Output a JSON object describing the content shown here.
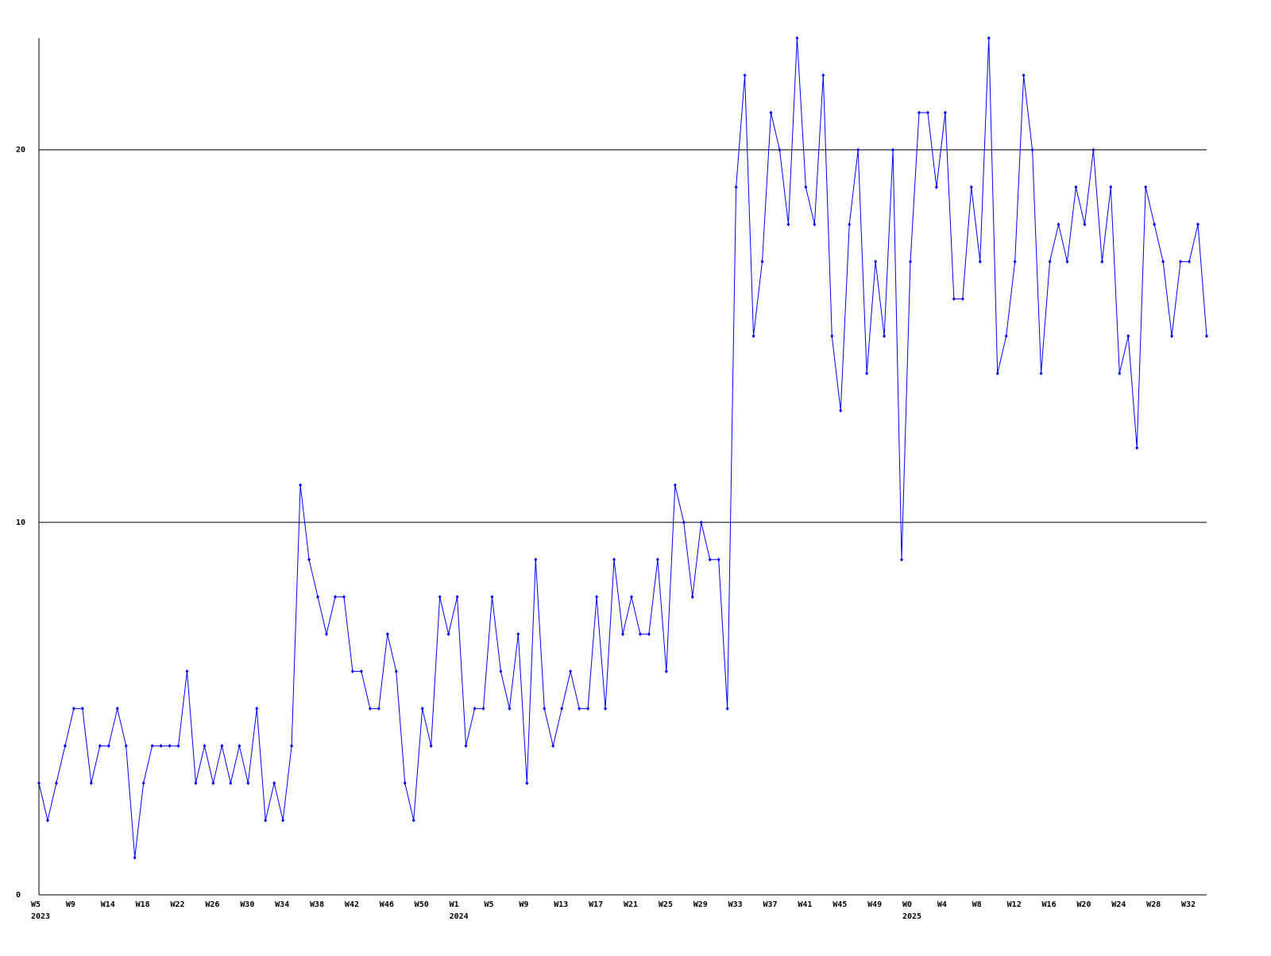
{
  "chart_data": {
    "type": "line",
    "categories": [
      "W5",
      null,
      null,
      null,
      "W9",
      null,
      null,
      null,
      "W14",
      null,
      null,
      null,
      "W18",
      null,
      null,
      null,
      "W22",
      null,
      null,
      null,
      "W26",
      null,
      null,
      null,
      "W30",
      null,
      null,
      null,
      "W34",
      null,
      null,
      null,
      "W38",
      null,
      null,
      null,
      "W42",
      null,
      null,
      null,
      "W46",
      null,
      null,
      null,
      "W50",
      null,
      null,
      null,
      "W1",
      null,
      null,
      null,
      "W5",
      null,
      null,
      null,
      "W9",
      null,
      null,
      null,
      "W13",
      null,
      null,
      null,
      "W17",
      null,
      null,
      null,
      "W21",
      null,
      null,
      null,
      "W25",
      null,
      null,
      null,
      "W29",
      null,
      null,
      null,
      "W33",
      null,
      null,
      null,
      "W37",
      null,
      null,
      null,
      "W41",
      null,
      null,
      null,
      "W45",
      null,
      null,
      null,
      "W49",
      null,
      null,
      null,
      "W0",
      null,
      null,
      null,
      "W4",
      null,
      null,
      null,
      "W8",
      null,
      null,
      null,
      "W12",
      null,
      null,
      null,
      "W16",
      null,
      null,
      null,
      "W20",
      null,
      null,
      null,
      "W24",
      null,
      null,
      null,
      "W28",
      null,
      null,
      null,
      "W32",
      null,
      null
    ],
    "year_labels": [
      {
        "index": 0,
        "label": "2023"
      },
      {
        "index": 48,
        "label": "2024"
      },
      {
        "index": 100,
        "label": "2025"
      }
    ],
    "series": [
      {
        "color": "#0000ff",
        "values": [
          3,
          2,
          3,
          4,
          5,
          5,
          3,
          4,
          4,
          5,
          4,
          1,
          3,
          4,
          4,
          4,
          4,
          6,
          3,
          4,
          3,
          4,
          3,
          4,
          3,
          5,
          2,
          3,
          2,
          4,
          11,
          9,
          8,
          7,
          8,
          8,
          6,
          6,
          5,
          5,
          7,
          6,
          3,
          2,
          5,
          4,
          8,
          7,
          8,
          4,
          5,
          5,
          8,
          6,
          5,
          7,
          3,
          9,
          5,
          4,
          5,
          6,
          5,
          5,
          8,
          5,
          9,
          7,
          8,
          7,
          7,
          9,
          6,
          11,
          10,
          8,
          10,
          9,
          9,
          5,
          19,
          22,
          15,
          17,
          21,
          20,
          18,
          23,
          19,
          18,
          22,
          15,
          13,
          18,
          20,
          14,
          17,
          15,
          20,
          9,
          17,
          21,
          21,
          19,
          21,
          16,
          16,
          19,
          17,
          23,
          14,
          15,
          17,
          22,
          20,
          14,
          17,
          18,
          17,
          19,
          18,
          20,
          17,
          19,
          14,
          15,
          12,
          19,
          18,
          17,
          15,
          17,
          17,
          18,
          15
        ]
      }
    ],
    "ylim": [
      0,
      23
    ],
    "yticks": [
      0,
      10,
      20
    ],
    "grid": true
  }
}
